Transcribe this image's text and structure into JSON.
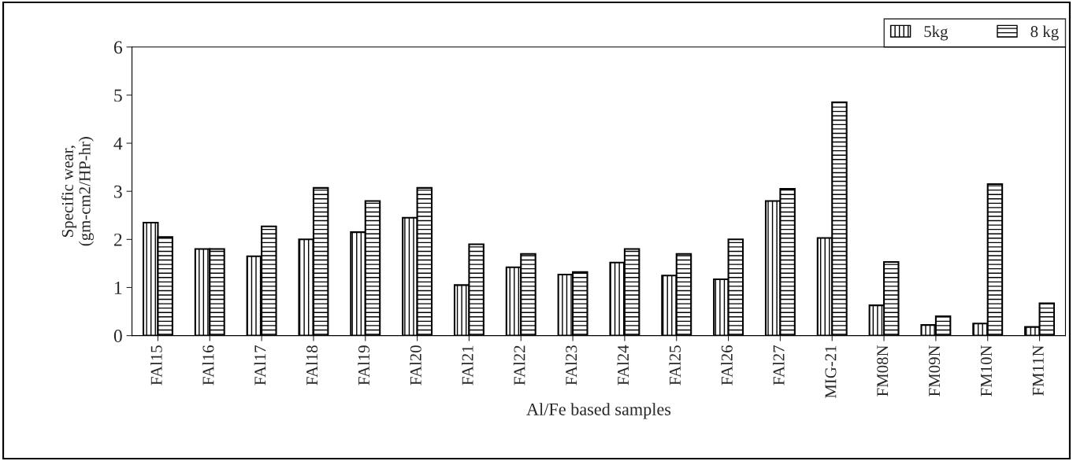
{
  "chart_data": {
    "type": "bar",
    "xlabel": "Al/Fe based samples",
    "ylabel": "Specific wear,\n(gm-cm2/HP-hr)",
    "categories": [
      "FAl15",
      "FAl16",
      "FAl17",
      "FAl18",
      "FAl19",
      "FAl20",
      "FAl21",
      "FAl22",
      "FAl23",
      "FAl24",
      "FAl25",
      "FAl26",
      "FAl27",
      "MIG-21",
      "FM08N",
      "FM09N",
      "FM10N",
      "FM11N"
    ],
    "series": [
      {
        "name": "5kg",
        "color": "#000000",
        "values": [
          2.35,
          1.8,
          1.65,
          2.0,
          2.15,
          2.45,
          1.05,
          1.42,
          1.27,
          1.52,
          1.25,
          1.17,
          2.8,
          2.03,
          0.63,
          0.22,
          0.25,
          0.18
        ]
      },
      {
        "name": "8 kg",
        "color": "#000000",
        "values": [
          2.05,
          1.8,
          2.27,
          3.07,
          2.8,
          3.07,
          1.9,
          1.7,
          1.32,
          1.8,
          1.7,
          2.0,
          3.05,
          4.85,
          1.53,
          0.4,
          3.15,
          0.67
        ]
      }
    ],
    "ylim": [
      0,
      6
    ],
    "yticks": [
      0,
      1,
      2,
      3,
      4,
      5,
      6
    ],
    "grid": false,
    "legend": "top right"
  }
}
